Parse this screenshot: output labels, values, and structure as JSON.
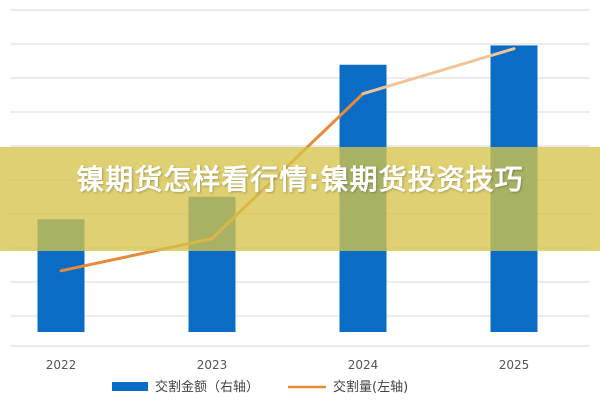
{
  "banner": {
    "title": "镍期货怎样看行情:镍期货投资技巧"
  },
  "colors": {
    "bar": "#0a6cc4",
    "line": "#e58b3a",
    "line_late": "#f1c49a",
    "grid": "#d9d9d9",
    "banner": "#d6c44a"
  },
  "chart_data": {
    "type": "bar",
    "categories": [
      "2022",
      "2023",
      "2024",
      "2025"
    ],
    "series": [
      {
        "name": "交割金额（右轴）",
        "type": "bar",
        "axis": "right",
        "values": [
          3.5,
          4.2,
          8.3,
          8.9
        ]
      },
      {
        "name": "交割量(左轴)",
        "type": "line",
        "axis": "left",
        "values": [
          1.9,
          2.9,
          7.4,
          8.8
        ]
      }
    ],
    "ylim": [
      0,
      10
    ],
    "grid": true,
    "legend": "bottom",
    "legend_labels": [
      "交割金额（右轴）",
      "交割量(左轴)"
    ]
  }
}
